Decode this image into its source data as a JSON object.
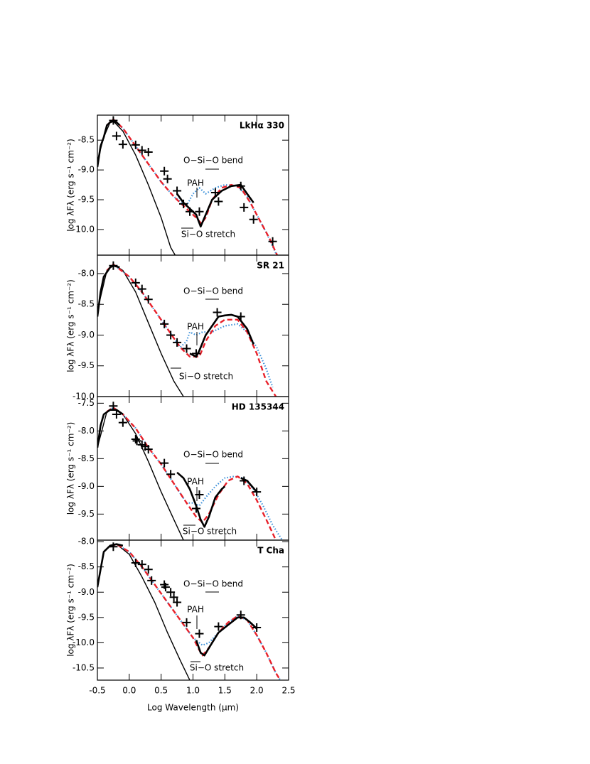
{
  "chart_data": [
    {
      "type": "line",
      "title": "LkHα 330",
      "y_label": "log λFλ (erg s⁻¹ cm⁻²)",
      "annotations": [
        "O−Si−O bend",
        "PAH",
        "Si−O stretch"
      ],
      "xlim": [
        -0.5,
        2.5
      ],
      "xticks": [
        -0.5,
        0,
        0.5,
        1,
        1.5,
        2,
        2.5
      ],
      "ylim": [
        -10.43,
        -8.08
      ],
      "yticks": [
        -8.5,
        {
          "value": -9,
          "label": "-9.0"
        },
        -9.5,
        {
          "value": -10,
          "label": "-10.0"
        }
      ],
      "series": [
        {
          "color": "#000000",
          "line_style": "thin",
          "x": [
            -0.5,
            -0.4,
            -0.3,
            -0.25,
            -0.1,
            0.1,
            0.3,
            0.5,
            0.65,
            0.72
          ],
          "values": [
            -8.85,
            -8.45,
            -8.2,
            -8.18,
            -8.35,
            -8.75,
            -9.25,
            -9.8,
            -10.3,
            -10.43
          ]
        },
        {
          "color": "#3a8fd9",
          "line_style": "dotted",
          "x": [
            -0.35,
            -0.25,
            -0.1,
            0.1,
            0.3,
            0.5,
            0.7,
            0.9,
            1.0,
            1.1,
            1.2,
            1.35,
            1.5,
            1.7,
            1.85,
            2.0,
            2.15,
            2.3
          ],
          "values": [
            -8.25,
            -8.15,
            -8.3,
            -8.6,
            -8.9,
            -9.2,
            -9.45,
            -9.6,
            -9.4,
            -9.3,
            -9.4,
            -9.3,
            -9.25,
            -9.27,
            -9.45,
            -9.75,
            -10.05,
            -10.4
          ]
        },
        {
          "color": "#e8202a",
          "line_style": "dashed",
          "x": [
            -0.35,
            -0.25,
            -0.1,
            0.1,
            0.3,
            0.5,
            0.7,
            0.9,
            1.05,
            1.13,
            1.2,
            1.3,
            1.45,
            1.6,
            1.75,
            1.9,
            2.05,
            2.2,
            2.32
          ],
          "values": [
            -8.25,
            -8.15,
            -8.3,
            -8.6,
            -8.9,
            -9.2,
            -9.45,
            -9.65,
            -9.8,
            -9.9,
            -9.8,
            -9.5,
            -9.3,
            -9.25,
            -9.3,
            -9.55,
            -9.85,
            -10.15,
            -10.43
          ]
        },
        {
          "color": "#000000",
          "line_style": "thick",
          "x": [
            -0.5,
            -0.45,
            -0.4,
            -0.35,
            -0.3,
            -0.25,
            -0.2,
            -0.15,
            null,
            0.75,
            0.85,
            0.95,
            1.05,
            1.12,
            1.2,
            1.3,
            1.45,
            1.6,
            1.75,
            1.85,
            1.95
          ],
          "values": [
            -8.95,
            -8.6,
            -8.45,
            -8.25,
            -8.2,
            -8.18,
            -8.2,
            -8.25,
            null,
            -9.4,
            -9.55,
            -9.65,
            -9.75,
            -9.95,
            -9.75,
            -9.5,
            -9.35,
            -9.27,
            -9.25,
            -9.4,
            -9.55
          ]
        },
        {
          "color": "#000000",
          "marker": "cross",
          "x": [
            -0.25,
            -0.2,
            -0.1,
            0.1,
            0.2,
            0.3,
            0.55,
            0.6,
            0.75,
            0.85,
            0.95,
            1.1,
            1.35,
            1.4,
            1.75,
            1.8,
            1.95,
            2.25
          ],
          "values": [
            -8.17,
            -8.43,
            -8.57,
            -8.58,
            -8.67,
            -8.7,
            -9.02,
            -9.15,
            -9.35,
            -9.57,
            -9.7,
            -9.7,
            -9.38,
            -9.53,
            -9.27,
            -9.63,
            -9.83,
            -10.2
          ]
        }
      ]
    },
    {
      "type": "line",
      "title": "SR 21",
      "y_label": "log λFλ (erg s⁻¹ cm⁻²)",
      "annotations": [
        "O−Si−O bend",
        "PAH",
        "Si−O stretch"
      ],
      "xlim": [
        -0.5,
        2.5
      ],
      "xticks": [
        -0.5,
        0,
        0.5,
        1,
        1.5,
        2,
        2.5
      ],
      "ylim": [
        -10.0,
        -7.7
      ],
      "yticks": [
        {
          "value": -8,
          "label": "-8.0"
        },
        -8.5,
        {
          "value": -9,
          "label": "-9.0"
        },
        -9.5,
        {
          "value": -10,
          "label": "-10.0"
        }
      ],
      "series": [
        {
          "color": "#000000",
          "line_style": "thin",
          "x": [
            -0.5,
            -0.35,
            -0.25,
            -0.1,
            0.1,
            0.3,
            0.5,
            0.7,
            0.85
          ],
          "values": [
            -8.6,
            -7.95,
            -7.85,
            -7.95,
            -8.3,
            -8.8,
            -9.3,
            -9.75,
            -10.0
          ]
        },
        {
          "color": "#3a8fd9",
          "line_style": "dotted",
          "x": [
            -0.35,
            -0.25,
            0,
            0.2,
            0.4,
            0.6,
            0.8,
            0.9,
            0.95,
            1.05,
            1.15,
            1.3,
            1.5,
            1.7,
            1.85,
            2.0,
            2.15,
            2.25
          ],
          "values": [
            -7.95,
            -7.85,
            -8.05,
            -8.3,
            -8.6,
            -8.9,
            -9.2,
            -9.1,
            -8.95,
            -9.0,
            -8.95,
            -8.95,
            -8.85,
            -8.82,
            -8.95,
            -9.2,
            -9.55,
            -9.85
          ]
        },
        {
          "color": "#e8202a",
          "line_style": "dashed",
          "x": [
            -0.35,
            -0.25,
            0,
            0.2,
            0.4,
            0.6,
            0.8,
            0.95,
            1.1,
            1.2,
            1.35,
            1.5,
            1.7,
            1.85,
            2.0,
            2.15,
            2.3
          ],
          "values": [
            -7.95,
            -7.85,
            -8.05,
            -8.3,
            -8.6,
            -8.9,
            -9.2,
            -9.35,
            -9.35,
            -9.1,
            -8.85,
            -8.75,
            -8.75,
            -8.95,
            -9.3,
            -9.75,
            -10.0
          ]
        },
        {
          "color": "#000000",
          "line_style": "thick",
          "x": [
            -0.5,
            -0.45,
            -0.4,
            -0.3,
            -0.25,
            -0.15,
            null,
            0.95,
            1.05,
            1.1,
            1.2,
            1.3,
            1.4,
            1.5,
            1.6,
            1.7,
            1.85,
            1.95
          ],
          "values": [
            -8.7,
            -8.3,
            -8.05,
            -7.9,
            -7.87,
            -7.9,
            null,
            -9.3,
            -9.35,
            -9.25,
            -9.0,
            -8.85,
            -8.7,
            -8.68,
            -8.67,
            -8.7,
            -8.9,
            -9.15
          ]
        },
        {
          "color": "#000000",
          "marker": "cross",
          "x": [
            -0.25,
            0.1,
            0.2,
            0.3,
            0.55,
            0.65,
            0.75,
            0.9,
            1.05,
            1.38,
            1.75
          ],
          "values": [
            -7.87,
            -8.15,
            -8.25,
            -8.42,
            -8.82,
            -9.0,
            -9.12,
            -9.22,
            -9.3,
            -8.63,
            -8.7
          ]
        }
      ]
    },
    {
      "type": "line",
      "title": "HD 135344",
      "y_label": "log λFλ (erg s⁻¹ cm⁻²)",
      "annotations": [
        "O−Si−O bend",
        "PAH",
        "Si−O stretch"
      ],
      "xlim": [
        -0.5,
        2.5
      ],
      "xticks": [
        -0.5,
        0,
        0.5,
        1,
        1.5,
        2,
        2.5
      ],
      "ylim": [
        -9.97,
        -7.38
      ],
      "yticks": [
        -7.5,
        {
          "value": -8,
          "label": "-8.0"
        },
        -8.5,
        {
          "value": -9,
          "label": "-9.0"
        },
        -9.5
      ],
      "series": [
        {
          "color": "#000000",
          "line_style": "thin",
          "x": [
            -0.5,
            -0.35,
            -0.25,
            -0.1,
            0.1,
            0.3,
            0.5,
            0.7,
            0.85
          ],
          "values": [
            -8.3,
            -7.65,
            -7.6,
            -7.7,
            -8.05,
            -8.55,
            -9.1,
            -9.6,
            -9.97
          ]
        },
        {
          "color": "#3a8fd9",
          "line_style": "dotted",
          "x": [
            -0.35,
            -0.25,
            -0.1,
            0.1,
            0.3,
            0.5,
            0.7,
            0.9,
            1.0,
            1.1,
            1.2,
            1.35,
            1.5,
            1.65,
            1.8,
            1.95,
            2.1,
            2.25,
            2.4
          ],
          "values": [
            -7.65,
            -7.58,
            -7.7,
            -7.95,
            -8.3,
            -8.6,
            -8.95,
            -9.3,
            -9.3,
            -9.35,
            -9.2,
            -9.0,
            -8.85,
            -8.82,
            -8.85,
            -9.05,
            -9.35,
            -9.7,
            -9.97
          ]
        },
        {
          "color": "#e8202a",
          "line_style": "dashed",
          "x": [
            -0.35,
            -0.25,
            -0.1,
            0.1,
            0.3,
            0.5,
            0.7,
            0.9,
            1.05,
            1.15,
            1.25,
            1.4,
            1.55,
            1.7,
            1.85,
            2.0,
            2.15,
            2.3
          ],
          "values": [
            -7.65,
            -7.58,
            -7.7,
            -7.95,
            -8.3,
            -8.6,
            -8.95,
            -9.3,
            -9.55,
            -9.65,
            -9.5,
            -9.15,
            -8.9,
            -8.82,
            -8.95,
            -9.25,
            -9.6,
            -9.97
          ]
        },
        {
          "color": "#000000",
          "line_style": "thick",
          "x": [
            -0.5,
            -0.45,
            -0.4,
            -0.3,
            -0.2,
            -0.1,
            null,
            0.75,
            0.85,
            0.95,
            1.05,
            1.12,
            1.18,
            1.25,
            1.35,
            1.45,
            1.5,
            null,
            1.75,
            1.85,
            2.0
          ],
          "values": [
            -8.3,
            -7.9,
            -7.7,
            -7.62,
            -7.62,
            -7.7,
            null,
            -8.75,
            -8.85,
            -9.05,
            -9.35,
            -9.6,
            -9.73,
            -9.55,
            -9.2,
            -9.05,
            -9.0,
            null,
            -8.85,
            -8.9,
            -9.1
          ]
        },
        {
          "color": "#000000",
          "marker": "cross",
          "x": [
            -0.25,
            -0.2,
            -0.1,
            0.1,
            0.12,
            0.2,
            0.25,
            0.3,
            0.55,
            0.65,
            1.05,
            1.1,
            1.8,
            2.0
          ],
          "values": [
            -7.55,
            -7.7,
            -7.85,
            -8.15,
            -8.18,
            -8.25,
            -8.28,
            -8.33,
            -8.58,
            -8.78,
            -9.4,
            -9.15,
            -8.9,
            -9.1
          ]
        }
      ]
    },
    {
      "type": "line",
      "title": "T Cha",
      "y_label": "log λFλ (erg s⁻¹ cm⁻²)",
      "x_label": "Log Wavelength (μm)",
      "annotations": [
        "O−Si−O bend",
        "PAH",
        "Si−O stretch"
      ],
      "xlim": [
        -0.5,
        2.5
      ],
      "xticks": [
        -0.5,
        {
          "value": 0,
          "label": "0.0"
        },
        0.5,
        {
          "value": 1,
          "label": "1.0"
        },
        1.5,
        {
          "value": 2,
          "label": "2.0"
        },
        2.5
      ],
      "ylim": [
        -10.74,
        -7.97
      ],
      "yticks": [
        {
          "value": -8,
          "label": "-8.0"
        },
        -8.5,
        {
          "value": -9,
          "label": "-9.0"
        },
        -9.5,
        {
          "value": -10,
          "label": "-10.0"
        },
        -10.5
      ],
      "series": [
        {
          "color": "#000000",
          "line_style": "thin",
          "x": [
            -0.5,
            -0.4,
            -0.3,
            -0.2,
            0,
            0.2,
            0.4,
            0.6,
            0.8,
            0.95
          ],
          "values": [
            -8.9,
            -8.2,
            -8.08,
            -8.05,
            -8.25,
            -8.7,
            -9.2,
            -9.8,
            -10.35,
            -10.74
          ]
        },
        {
          "color": "#3a8fd9",
          "line_style": "dotted",
          "x": [
            -0.3,
            -0.2,
            0,
            0.2,
            0.4,
            0.6,
            0.8,
            1.0,
            1.1,
            1.15,
            1.25,
            1.4,
            1.55,
            1.7,
            1.85,
            2.0,
            2.15,
            2.3,
            2.37
          ],
          "values": [
            -8.1,
            -8.05,
            -8.2,
            -8.5,
            -8.85,
            -9.2,
            -9.55,
            -9.9,
            -10.0,
            -10.05,
            -10.0,
            -9.8,
            -9.6,
            -9.47,
            -9.55,
            -9.85,
            -10.2,
            -10.6,
            -10.74
          ]
        },
        {
          "color": "#e8202a",
          "line_style": "dashed",
          "x": [
            -0.3,
            -0.2,
            0,
            0.2,
            0.4,
            0.6,
            0.8,
            1.0,
            1.1,
            1.15,
            1.25,
            1.4,
            1.55,
            1.7,
            1.85,
            2.0,
            2.15,
            2.3,
            2.37
          ],
          "values": [
            -8.1,
            -8.05,
            -8.2,
            -8.5,
            -8.85,
            -9.2,
            -9.55,
            -9.9,
            -10.15,
            -10.25,
            -10.1,
            -9.8,
            -9.6,
            -9.47,
            -9.55,
            -9.85,
            -10.2,
            -10.6,
            -10.74
          ]
        },
        {
          "color": "#000000",
          "line_style": "thick",
          "x": [
            -0.5,
            -0.45,
            -0.4,
            -0.3,
            -0.2,
            -0.1,
            null,
            1.05,
            1.12,
            1.18,
            1.3,
            1.4,
            1.5,
            1.6,
            1.7,
            1.8,
            1.9,
            2.0
          ],
          "values": [
            -8.9,
            -8.55,
            -8.2,
            -8.08,
            -8.05,
            -8.08,
            null,
            -9.95,
            -10.2,
            -10.25,
            -10.0,
            -9.8,
            -9.7,
            -9.6,
            -9.5,
            -9.5,
            -9.6,
            -9.72
          ]
        },
        {
          "color": "#000000",
          "marker": "cross",
          "x": [
            -0.25,
            0.1,
            0.2,
            0.3,
            0.35,
            0.55,
            0.57,
            0.65,
            0.7,
            0.75,
            0.9,
            1.1,
            1.4,
            1.75,
            2.0
          ],
          "values": [
            -8.1,
            -8.42,
            -8.45,
            -8.55,
            -8.77,
            -8.85,
            -8.9,
            -9.0,
            -9.1,
            -9.2,
            -9.6,
            -9.82,
            -9.68,
            -9.45,
            -9.7
          ]
        }
      ]
    }
  ]
}
